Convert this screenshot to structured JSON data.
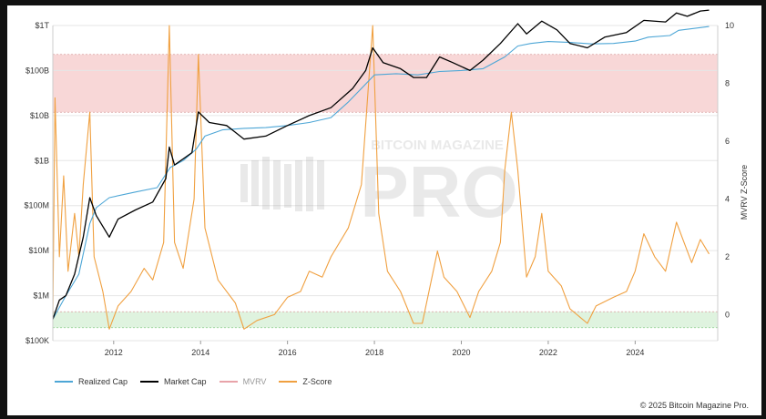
{
  "chart_data": {
    "type": "line",
    "title": "",
    "watermark": {
      "top": "BITCOIN MAGAZINE",
      "bottom": "PRO"
    },
    "x_ticks": [
      "2012",
      "2014",
      "2016",
      "2018",
      "2020",
      "2022",
      "2024"
    ],
    "x_range": [
      2010.6,
      2025.9
    ],
    "left_axis": {
      "scale": "log",
      "range": [
        100000,
        1000000000000
      ],
      "ticks": [
        {
          "value": 100000,
          "label": "$100K"
        },
        {
          "value": 1000000,
          "label": "$1M"
        },
        {
          "value": 10000000,
          "label": "$10M"
        },
        {
          "value": 100000000,
          "label": "$100M"
        },
        {
          "value": 1000000000,
          "label": "$1B"
        },
        {
          "value": 10000000000,
          "label": "$10B"
        },
        {
          "value": 100000000000,
          "label": "$100B"
        },
        {
          "value": 1000000000000,
          "label": "$1T"
        }
      ]
    },
    "right_axis": {
      "label": "MVRV Z-Score",
      "range": [
        -0.9,
        10
      ],
      "ticks": [
        0,
        2,
        4,
        6,
        8,
        10
      ]
    },
    "bands": [
      {
        "from": 7.0,
        "to": 9.0,
        "color": "#f8d7d7"
      },
      {
        "from": -0.45,
        "to": 0.1,
        "color": "#dff3df"
      }
    ],
    "series": [
      {
        "name": "Realized Cap",
        "color": "#4da6d6",
        "axis": "left",
        "points": [
          [
            2010.6,
            300000
          ],
          [
            2010.9,
            1000000
          ],
          [
            2011.2,
            3000000
          ],
          [
            2011.45,
            40000000
          ],
          [
            2011.6,
            90000000
          ],
          [
            2011.9,
            150000000
          ],
          [
            2012.5,
            200000000
          ],
          [
            2013.0,
            250000000
          ],
          [
            2013.3,
            700000000
          ],
          [
            2013.6,
            1000000000
          ],
          [
            2013.9,
            1800000000
          ],
          [
            2014.1,
            3500000000
          ],
          [
            2014.5,
            4800000000
          ],
          [
            2015.0,
            5200000000
          ],
          [
            2015.5,
            5400000000
          ],
          [
            2016.0,
            6000000000
          ],
          [
            2016.5,
            7000000000
          ],
          [
            2017.0,
            9000000000
          ],
          [
            2017.4,
            20000000000
          ],
          [
            2017.8,
            50000000000
          ],
          [
            2018.0,
            80000000000
          ],
          [
            2018.5,
            85000000000
          ],
          [
            2019.0,
            80000000000
          ],
          [
            2019.5,
            95000000000
          ],
          [
            2020.0,
            100000000000
          ],
          [
            2020.5,
            110000000000
          ],
          [
            2021.0,
            200000000000
          ],
          [
            2021.3,
            350000000000
          ],
          [
            2021.6,
            400000000000
          ],
          [
            2022.0,
            440000000000
          ],
          [
            2022.5,
            420000000000
          ],
          [
            2023.0,
            390000000000
          ],
          [
            2023.5,
            400000000000
          ],
          [
            2024.0,
            450000000000
          ],
          [
            2024.3,
            550000000000
          ],
          [
            2024.8,
            600000000000
          ],
          [
            2025.0,
            780000000000
          ],
          [
            2025.5,
            900000000000
          ],
          [
            2025.7,
            950000000000
          ]
        ]
      },
      {
        "name": "Market Cap",
        "color": "#000000",
        "axis": "left",
        "points": [
          [
            2010.6,
            300000
          ],
          [
            2010.75,
            800000
          ],
          [
            2010.9,
            1000000
          ],
          [
            2011.1,
            3000000
          ],
          [
            2011.3,
            20000000
          ],
          [
            2011.45,
            150000000
          ],
          [
            2011.6,
            60000000
          ],
          [
            2011.9,
            20000000
          ],
          [
            2012.1,
            50000000
          ],
          [
            2012.5,
            80000000
          ],
          [
            2012.9,
            120000000
          ],
          [
            2013.2,
            400000000
          ],
          [
            2013.28,
            2000000000
          ],
          [
            2013.4,
            800000000
          ],
          [
            2013.8,
            1500000000
          ],
          [
            2013.95,
            12000000000
          ],
          [
            2014.2,
            7000000000
          ],
          [
            2014.6,
            6000000000
          ],
          [
            2015.0,
            3000000000
          ],
          [
            2015.5,
            3500000000
          ],
          [
            2016.0,
            6000000000
          ],
          [
            2016.5,
            10000000000
          ],
          [
            2017.0,
            15000000000
          ],
          [
            2017.5,
            40000000000
          ],
          [
            2017.8,
            100000000000
          ],
          [
            2017.96,
            320000000000
          ],
          [
            2018.2,
            150000000000
          ],
          [
            2018.6,
            110000000000
          ],
          [
            2018.9,
            70000000000
          ],
          [
            2019.2,
            70000000000
          ],
          [
            2019.5,
            200000000000
          ],
          [
            2019.8,
            150000000000
          ],
          [
            2020.2,
            100000000000
          ],
          [
            2020.5,
            170000000000
          ],
          [
            2020.9,
            400000000000
          ],
          [
            2021.3,
            1100000000000
          ],
          [
            2021.5,
            650000000000
          ],
          [
            2021.85,
            1250000000000
          ],
          [
            2022.2,
            800000000000
          ],
          [
            2022.5,
            400000000000
          ],
          [
            2022.9,
            320000000000
          ],
          [
            2023.3,
            550000000000
          ],
          [
            2023.8,
            700000000000
          ],
          [
            2024.2,
            1300000000000
          ],
          [
            2024.7,
            1200000000000
          ],
          [
            2024.95,
            1900000000000
          ],
          [
            2025.2,
            1600000000000
          ],
          [
            2025.5,
            2100000000000
          ],
          [
            2025.7,
            2200000000000
          ]
        ]
      },
      {
        "name": "MVRV",
        "color": "#e8a3a9",
        "axis": "right",
        "points": []
      },
      {
        "name": "Z-Score",
        "color": "#f0a040",
        "axis": "right",
        "points": [
          [
            2010.6,
            0.0
          ],
          [
            2010.65,
            7.5
          ],
          [
            2010.75,
            2.0
          ],
          [
            2010.85,
            4.8
          ],
          [
            2010.95,
            1.5
          ],
          [
            2011.1,
            3.5
          ],
          [
            2011.2,
            2.0
          ],
          [
            2011.3,
            4.5
          ],
          [
            2011.45,
            7.0
          ],
          [
            2011.55,
            2.0
          ],
          [
            2011.75,
            0.8
          ],
          [
            2011.9,
            -0.5
          ],
          [
            2012.1,
            0.3
          ],
          [
            2012.4,
            0.8
          ],
          [
            2012.7,
            1.6
          ],
          [
            2012.9,
            1.2
          ],
          [
            2013.15,
            2.5
          ],
          [
            2013.28,
            10.0
          ],
          [
            2013.4,
            2.5
          ],
          [
            2013.6,
            1.6
          ],
          [
            2013.85,
            4.0
          ],
          [
            2013.95,
            9.0
          ],
          [
            2014.1,
            3.0
          ],
          [
            2014.4,
            1.2
          ],
          [
            2014.8,
            0.4
          ],
          [
            2015.0,
            -0.5
          ],
          [
            2015.3,
            -0.2
          ],
          [
            2015.7,
            0.0
          ],
          [
            2016.0,
            0.6
          ],
          [
            2016.3,
            0.8
          ],
          [
            2016.5,
            1.5
          ],
          [
            2016.8,
            1.3
          ],
          [
            2017.0,
            2.0
          ],
          [
            2017.4,
            3.0
          ],
          [
            2017.7,
            4.5
          ],
          [
            2017.96,
            10.0
          ],
          [
            2018.1,
            3.5
          ],
          [
            2018.3,
            1.5
          ],
          [
            2018.6,
            0.8
          ],
          [
            2018.9,
            -0.3
          ],
          [
            2019.1,
            -0.3
          ],
          [
            2019.45,
            2.2
          ],
          [
            2019.6,
            1.3
          ],
          [
            2019.9,
            0.8
          ],
          [
            2020.2,
            -0.1
          ],
          [
            2020.4,
            0.8
          ],
          [
            2020.7,
            1.5
          ],
          [
            2020.9,
            2.5
          ],
          [
            2021.0,
            5.0
          ],
          [
            2021.15,
            7.0
          ],
          [
            2021.3,
            5.0
          ],
          [
            2021.5,
            1.3
          ],
          [
            2021.7,
            2.0
          ],
          [
            2021.85,
            3.5
          ],
          [
            2022.0,
            1.5
          ],
          [
            2022.3,
            1.0
          ],
          [
            2022.5,
            0.2
          ],
          [
            2022.9,
            -0.3
          ],
          [
            2023.1,
            0.3
          ],
          [
            2023.5,
            0.6
          ],
          [
            2023.8,
            0.8
          ],
          [
            2024.0,
            1.5
          ],
          [
            2024.2,
            2.8
          ],
          [
            2024.45,
            2.0
          ],
          [
            2024.7,
            1.5
          ],
          [
            2024.95,
            3.2
          ],
          [
            2025.1,
            2.6
          ],
          [
            2025.3,
            1.8
          ],
          [
            2025.5,
            2.6
          ],
          [
            2025.7,
            2.1
          ]
        ]
      }
    ]
  },
  "legend": [
    {
      "label": "Realized Cap",
      "color": "#4da6d6"
    },
    {
      "label": "Market Cap",
      "color": "#000000"
    },
    {
      "label": "MVRV",
      "color": "#e8a3a9"
    },
    {
      "label": "Z-Score",
      "color": "#f0a040"
    }
  ],
  "footer": {
    "copyright": "© 2025 Bitcoin Magazine Pro."
  }
}
